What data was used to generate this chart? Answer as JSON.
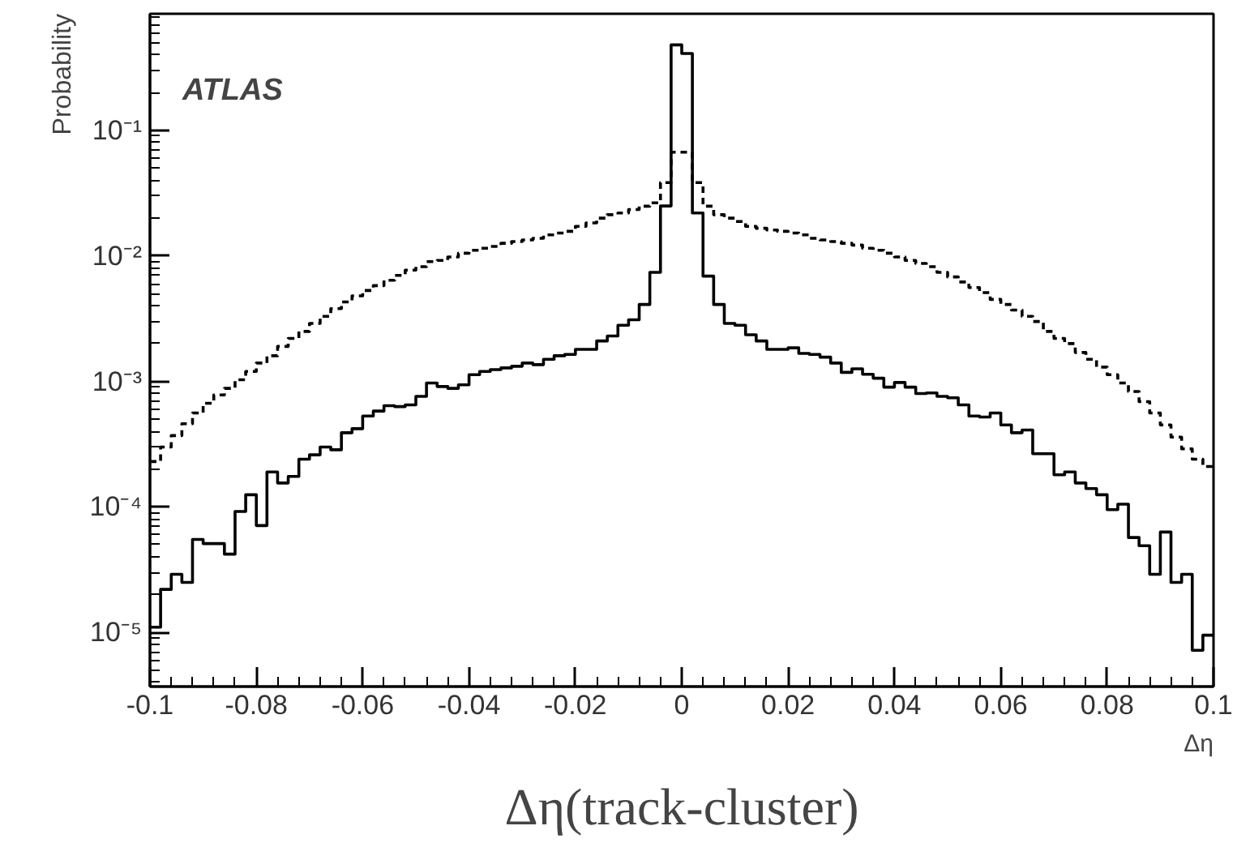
{
  "chart_data": {
    "type": "histogram",
    "xlabel": "Δη",
    "ylabel": "Probability",
    "annotations": [
      "ATLAS",
      "Δη(track-cluster)"
    ],
    "bins": [
      -0.1,
      -0.098,
      -0.096,
      -0.094,
      -0.092,
      -0.09,
      -0.088,
      -0.086,
      -0.084,
      -0.082,
      -0.08,
      -0.078,
      -0.076,
      -0.074,
      -0.072,
      -0.07,
      -0.068,
      -0.066,
      -0.064,
      -0.062,
      -0.06,
      -0.058,
      -0.056,
      -0.054,
      -0.052,
      -0.05,
      -0.048,
      -0.046,
      -0.044,
      -0.042,
      -0.04,
      -0.038,
      -0.036,
      -0.034,
      -0.032,
      -0.03,
      -0.028,
      -0.026,
      -0.024,
      -0.022,
      -0.02,
      -0.018,
      -0.016,
      -0.014,
      -0.012,
      -0.01,
      -0.008,
      -0.006,
      -0.004,
      -0.002,
      0,
      0.002,
      0.004,
      0.006,
      0.008,
      0.01,
      0.012,
      0.014,
      0.016,
      0.018,
      0.02,
      0.022,
      0.024,
      0.026,
      0.028,
      0.03,
      0.032,
      0.034,
      0.036,
      0.038,
      0.04,
      0.042,
      0.044,
      0.046,
      0.048,
      0.05,
      0.052,
      0.054,
      0.056,
      0.058,
      0.06,
      0.062,
      0.064,
      0.066,
      0.068,
      0.07,
      0.072,
      0.074,
      0.076,
      0.078,
      0.08,
      0.082,
      0.084,
      0.086,
      0.088,
      0.09,
      0.092,
      0.094,
      0.096,
      0.098,
      0.1
    ],
    "series": [
      {
        "color": "#000000",
        "line_style": "solid",
        "values": [
          1.1e-05,
          2.2e-05,
          2.9e-05,
          2.5e-05,
          5.5e-05,
          5.1e-05,
          5.1e-05,
          4.2e-05,
          9.2e-05,
          0.000125,
          7.1e-05,
          0.00019,
          0.000155,
          0.000175,
          0.00024,
          0.00026,
          0.0003,
          0.000285,
          0.00039,
          0.00042,
          0.00053,
          0.00058,
          0.00064,
          0.00063,
          0.00065,
          0.00076,
          0.00097,
          0.00091,
          0.00088,
          0.00094,
          0.00113,
          0.0012,
          0.00124,
          0.00128,
          0.00132,
          0.0014,
          0.00136,
          0.0015,
          0.0016,
          0.00164,
          0.0018,
          0.0018,
          0.0021,
          0.0023,
          0.0028,
          0.0031,
          0.0041,
          0.0074,
          0.025,
          0.48,
          0.41,
          0.022,
          0.0069,
          0.0041,
          0.0029,
          0.0028,
          0.00235,
          0.0021,
          0.0018,
          0.0018,
          0.00185,
          0.00167,
          0.00164,
          0.00156,
          0.0014,
          0.00118,
          0.00126,
          0.00114,
          0.00106,
          0.0009,
          0.00098,
          0.0009,
          0.0008,
          0.00081,
          0.00076,
          0.00074,
          0.00065,
          0.00053,
          0.00052,
          0.00056,
          0.00045,
          0.00039,
          0.00041,
          0.000265,
          0.000265,
          0.00018,
          0.00019,
          0.000155,
          0.00014,
          0.000125,
          9.5e-05,
          0.000105,
          5.7e-05,
          4.9e-05,
          2.9e-05,
          6.3e-05,
          2.5e-05,
          2.9e-05,
          7.2e-06,
          9.5e-06
        ]
      },
      {
        "color": "#000000",
        "line_style": "dashed",
        "values": [
          0.00023,
          0.0003,
          0.00037,
          0.00046,
          0.00056,
          0.00067,
          0.00078,
          0.00088,
          0.00103,
          0.0012,
          0.0014,
          0.0016,
          0.0019,
          0.0022,
          0.0025,
          0.0029,
          0.0033,
          0.0038,
          0.0043,
          0.0048,
          0.0053,
          0.0058,
          0.0064,
          0.007,
          0.0077,
          0.0082,
          0.009,
          0.0092,
          0.0098,
          0.0105,
          0.0111,
          0.0115,
          0.0119,
          0.0126,
          0.013,
          0.0134,
          0.0138,
          0.0147,
          0.0152,
          0.0157,
          0.0172,
          0.0183,
          0.02,
          0.0213,
          0.022,
          0.0234,
          0.0249,
          0.0265,
          0.0384,
          0.067,
          0.067,
          0.0384,
          0.0249,
          0.0213,
          0.02,
          0.0188,
          0.0172,
          0.0166,
          0.0161,
          0.0157,
          0.0152,
          0.0147,
          0.0138,
          0.0134,
          0.013,
          0.0126,
          0.0122,
          0.0115,
          0.0111,
          0.0105,
          0.0098,
          0.0092,
          0.0087,
          0.0082,
          0.0074,
          0.0068,
          0.0062,
          0.0056,
          0.0051,
          0.0045,
          0.0041,
          0.0037,
          0.0033,
          0.003,
          0.0025,
          0.0022,
          0.002,
          0.0017,
          0.0015,
          0.0013,
          0.00113,
          0.00097,
          0.00083,
          0.00069,
          0.00056,
          0.00045,
          0.00036,
          0.00029,
          0.00024,
          0.00021
        ]
      }
    ],
    "log": true,
    "grid": false,
    "xlim": [
      -0.1,
      0.1
    ],
    "ylim": [
      3.7e-06,
      0.85
    ],
    "xticks": [
      -0.1,
      -0.08,
      -0.06,
      -0.04,
      -0.02,
      0,
      0.02,
      0.04,
      0.06,
      0.08,
      0.1
    ],
    "yticks": [
      {
        "value": 1e-05,
        "label": "10⁻⁵"
      },
      {
        "value": 0.0001,
        "label": "10⁻⁴"
      },
      {
        "value": 0.001,
        "label": "10⁻³"
      },
      {
        "value": 0.01,
        "label": "10⁻²"
      },
      {
        "value": 0.1,
        "label": "10⁻¹"
      }
    ]
  }
}
